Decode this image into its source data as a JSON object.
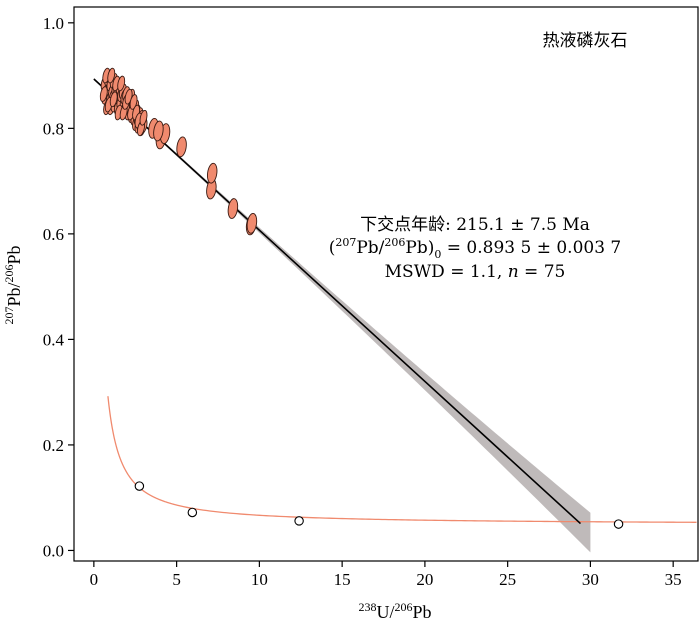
{
  "chart_data": {
    "type": "scatter",
    "title": "热液磷灰石",
    "xlabel": {
      "sup1": "238",
      "base1": "U/",
      "sup2": "206",
      "base2": "Pb"
    },
    "ylabel": {
      "sup1": "207",
      "base1": "Pb/",
      "sup2": "206",
      "base2": "Pb"
    },
    "xlim": [
      -1.2,
      36.5
    ],
    "ylim": [
      -0.02,
      1.03
    ],
    "xticks": [
      0,
      5,
      10,
      15,
      20,
      25,
      30,
      35
    ],
    "yticks": [
      0.0,
      0.2,
      0.4,
      0.6,
      0.8,
      1.0
    ],
    "xtick_labels": [
      "0",
      "5",
      "10",
      "15",
      "20",
      "25",
      "30",
      "35"
    ],
    "ytick_labels": [
      "0.0",
      "0.2",
      "0.4",
      "0.6",
      "0.8",
      "1.0"
    ],
    "annotation": {
      "line1": "下交点年龄: 215.1 ± 7.5 Ma",
      "line2_pre": "(",
      "line2_sup1": "207",
      "line2_mid": "Pb/",
      "line2_sup2": "206",
      "line2_post": "Pb)",
      "line2_sub": "0",
      "line2_val": " = 0.893 5 ± 0.003 7",
      "line3_pre": "MSWD = 1.1, ",
      "line3_n": "n",
      "line3_val": " = 75"
    },
    "discordia": {
      "x": [
        0.0,
        29.4
      ],
      "y": [
        0.8935,
        0.051
      ]
    },
    "concordia_markers": [
      {
        "x": 2.75,
        "y": 0.122
      },
      {
        "x": 5.95,
        "y": 0.072
      },
      {
        "x": 12.4,
        "y": 0.056
      },
      {
        "x": 31.7,
        "y": 0.05
      }
    ],
    "ellipses": [
      {
        "x": 0.65,
        "y": 0.885
      },
      {
        "x": 0.7,
        "y": 0.86
      },
      {
        "x": 0.75,
        "y": 0.87
      },
      {
        "x": 0.8,
        "y": 0.84
      },
      {
        "x": 0.85,
        "y": 0.895
      },
      {
        "x": 0.9,
        "y": 0.875
      },
      {
        "x": 0.95,
        "y": 0.855
      },
      {
        "x": 1.0,
        "y": 0.885
      },
      {
        "x": 1.05,
        "y": 0.84
      },
      {
        "x": 1.1,
        "y": 0.87
      },
      {
        "x": 1.15,
        "y": 0.86
      },
      {
        "x": 1.2,
        "y": 0.89
      },
      {
        "x": 1.25,
        "y": 0.845
      },
      {
        "x": 1.3,
        "y": 0.875
      },
      {
        "x": 1.35,
        "y": 0.855
      },
      {
        "x": 1.4,
        "y": 0.87
      },
      {
        "x": 1.45,
        "y": 0.84
      },
      {
        "x": 1.5,
        "y": 0.86
      },
      {
        "x": 1.55,
        "y": 0.88
      },
      {
        "x": 1.6,
        "y": 0.85
      },
      {
        "x": 1.65,
        "y": 0.865
      },
      {
        "x": 1.7,
        "y": 0.835
      },
      {
        "x": 1.75,
        "y": 0.87
      },
      {
        "x": 1.8,
        "y": 0.85
      },
      {
        "x": 1.85,
        "y": 0.86
      },
      {
        "x": 1.9,
        "y": 0.84
      },
      {
        "x": 1.95,
        "y": 0.865
      },
      {
        "x": 2.0,
        "y": 0.845
      },
      {
        "x": 2.05,
        "y": 0.855
      },
      {
        "x": 2.1,
        "y": 0.83
      },
      {
        "x": 2.15,
        "y": 0.85
      },
      {
        "x": 2.2,
        "y": 0.84
      },
      {
        "x": 2.25,
        "y": 0.86
      },
      {
        "x": 2.3,
        "y": 0.825
      },
      {
        "x": 2.35,
        "y": 0.845
      },
      {
        "x": 2.4,
        "y": 0.835
      },
      {
        "x": 2.45,
        "y": 0.82
      },
      {
        "x": 2.5,
        "y": 0.84
      },
      {
        "x": 2.55,
        "y": 0.81
      },
      {
        "x": 2.6,
        "y": 0.83
      },
      {
        "x": 2.65,
        "y": 0.82
      },
      {
        "x": 2.7,
        "y": 0.805
      },
      {
        "x": 2.75,
        "y": 0.825
      },
      {
        "x": 2.8,
        "y": 0.81
      },
      {
        "x": 2.85,
        "y": 0.82
      },
      {
        "x": 2.9,
        "y": 0.8
      },
      {
        "x": 2.95,
        "y": 0.815
      },
      {
        "x": 3.0,
        "y": 0.805
      },
      {
        "x": 0.6,
        "y": 0.865
      },
      {
        "x": 0.75,
        "y": 0.9
      },
      {
        "x": 0.9,
        "y": 0.845
      },
      {
        "x": 1.05,
        "y": 0.9
      },
      {
        "x": 1.2,
        "y": 0.855
      },
      {
        "x": 1.35,
        "y": 0.885
      },
      {
        "x": 1.5,
        "y": 0.83
      },
      {
        "x": 1.65,
        "y": 0.885
      },
      {
        "x": 1.8,
        "y": 0.83
      },
      {
        "x": 1.95,
        "y": 0.85
      },
      {
        "x": 2.1,
        "y": 0.86
      },
      {
        "x": 2.25,
        "y": 0.83
      },
      {
        "x": 2.4,
        "y": 0.85
      },
      {
        "x": 2.55,
        "y": 0.83
      },
      {
        "x": 2.7,
        "y": 0.815
      },
      {
        "x": 2.85,
        "y": 0.8
      },
      {
        "x": 3.0,
        "y": 0.82
      },
      {
        "x": 3.6,
        "y": 0.8
      },
      {
        "x": 4.05,
        "y": 0.78
      },
      {
        "x": 4.3,
        "y": 0.79
      },
      {
        "x": 5.3,
        "y": 0.765
      },
      {
        "x": 7.1,
        "y": 0.685
      },
      {
        "x": 7.15,
        "y": 0.715
      },
      {
        "x": 8.4,
        "y": 0.648
      },
      {
        "x": 9.5,
        "y": 0.617
      },
      {
        "x": 9.55,
        "y": 0.62
      },
      {
        "x": 3.9,
        "y": 0.795
      }
    ]
  },
  "colors": {
    "ellipse_fill": "#f08a6e",
    "ellipse_stroke": "#3a1a12",
    "concordia": "#f08a6e",
    "discordia": "#000000",
    "error_band": "#a9a3a3"
  }
}
